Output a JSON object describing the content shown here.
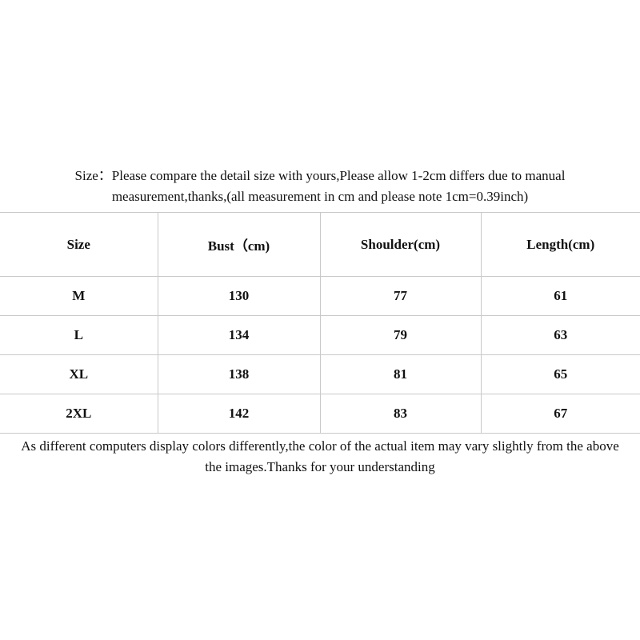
{
  "intro": {
    "lines": [
      "Size：Please compare the detail size with yours,Please allow 1-2cm differs due to manual",
      "measurement,thanks,(all measurement in cm and please note 1cm=0.39inch)"
    ]
  },
  "table": {
    "header": [
      "Size",
      "Bust（cm)",
      "Shoulder(cm)",
      "Length(cm)"
    ],
    "rows": [
      [
        "M",
        "130",
        "77",
        "61"
      ],
      [
        "L",
        "134",
        "79",
        "63"
      ],
      [
        "XL",
        "138",
        "81",
        "65"
      ],
      [
        "2XL",
        "142",
        "83",
        "67"
      ]
    ]
  },
  "note": {
    "lines": [
      "As different computers display colors differently,the color of the actual item may vary slightly from the above",
      "the images.Thanks for your understanding"
    ]
  }
}
